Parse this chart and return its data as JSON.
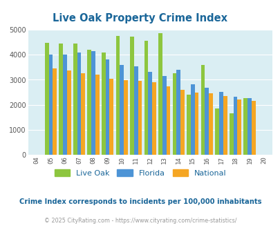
{
  "title": "Live Oak Property Crime Index",
  "years": [
    "04",
    "05",
    "06",
    "07",
    "08",
    "09",
    "10",
    "11",
    "12",
    "13",
    "14",
    "15",
    "16",
    "17",
    "18",
    "19",
    "20"
  ],
  "live_oak": [
    0,
    4480,
    4440,
    4450,
    4200,
    4100,
    4750,
    4720,
    4550,
    4850,
    3250,
    2420,
    3580,
    1850,
    1670,
    2260,
    0
  ],
  "florida": [
    0,
    4010,
    4000,
    4090,
    4150,
    3820,
    3580,
    3530,
    3310,
    3150,
    3400,
    2810,
    2690,
    2510,
    2320,
    2260,
    0
  ],
  "national": [
    0,
    3460,
    3360,
    3270,
    3220,
    3040,
    2990,
    2950,
    2890,
    2750,
    2610,
    2490,
    2470,
    2340,
    2220,
    2150,
    0
  ],
  "live_oak_color": "#8dc63f",
  "florida_color": "#4d94d6",
  "national_color": "#f5a623",
  "bg_color": "#daeef3",
  "ylim": [
    0,
    5000
  ],
  "yticks": [
    0,
    1000,
    2000,
    3000,
    4000,
    5000
  ],
  "subtitle": "Crime Index corresponds to incidents per 100,000 inhabitants",
  "footer": "© 2025 CityRating.com - https://www.cityrating.com/crime-statistics/",
  "title_color": "#1a6699",
  "subtitle_color": "#1a6699",
  "footer_color": "#999999",
  "legend_labels": [
    "Live Oak",
    "Florida",
    "National"
  ]
}
